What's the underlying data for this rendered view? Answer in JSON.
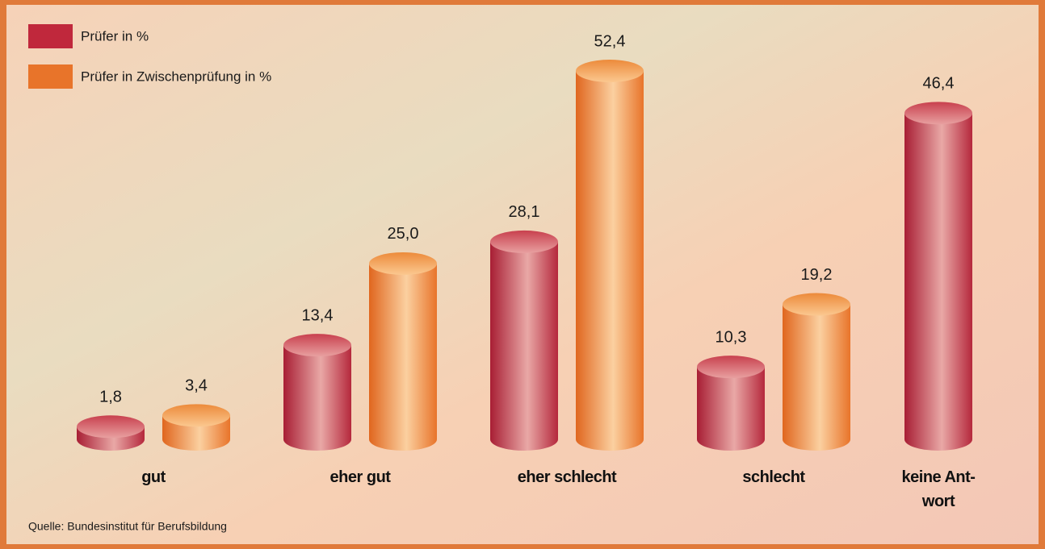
{
  "chart_data": {
    "type": "bar",
    "categories": [
      "gut",
      "eher gut",
      "eher schlecht",
      "schlecht",
      "keine Ant-\nwort"
    ],
    "series": [
      {
        "name": "Prüfer in %",
        "color": "#c0283c",
        "values": [
          1.8,
          13.4,
          28.1,
          10.3,
          46.4
        ],
        "value_labels": [
          "1,8",
          "13,4",
          "28,1",
          "10,3",
          "46,4"
        ]
      },
      {
        "name": "Prüfer in Zwischenprüfung in %",
        "color": "#e8742a",
        "values": [
          3.4,
          25.0,
          52.4,
          19.2,
          null
        ],
        "value_labels": [
          "3,4",
          "25,0",
          "52,4",
          "19,2",
          null
        ]
      }
    ],
    "source": "Quelle: Bundesinstitut für Berufsbildung"
  }
}
